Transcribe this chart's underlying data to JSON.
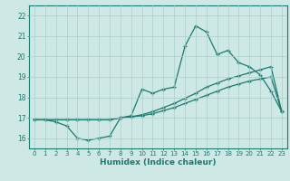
{
  "x": [
    0,
    1,
    2,
    3,
    4,
    5,
    6,
    7,
    8,
    9,
    10,
    11,
    12,
    13,
    14,
    15,
    16,
    17,
    18,
    19,
    20,
    21,
    22,
    23
  ],
  "series1": [
    16.9,
    16.9,
    16.8,
    16.6,
    16.0,
    15.9,
    16.0,
    16.1,
    17.0,
    17.1,
    18.4,
    18.2,
    18.4,
    18.5,
    20.5,
    21.5,
    21.2,
    20.1,
    20.3,
    19.7,
    19.5,
    19.1,
    18.3,
    17.3
  ],
  "series2": [
    16.9,
    16.9,
    16.9,
    16.9,
    16.9,
    16.9,
    16.9,
    16.9,
    17.0,
    17.05,
    17.1,
    17.2,
    17.35,
    17.5,
    17.7,
    17.9,
    18.1,
    18.3,
    18.5,
    18.65,
    18.8,
    18.9,
    19.0,
    17.3
  ],
  "series3": [
    16.9,
    16.9,
    16.9,
    16.9,
    16.9,
    16.9,
    16.9,
    16.9,
    17.0,
    17.05,
    17.15,
    17.3,
    17.5,
    17.7,
    17.95,
    18.2,
    18.5,
    18.7,
    18.9,
    19.05,
    19.2,
    19.35,
    19.5,
    17.3
  ],
  "xlabel": "Humidex (Indice chaleur)",
  "bg_color": "#cde8e5",
  "grid_color": "#aecfcc",
  "line_color": "#1a7a6e",
  "ylim": [
    15.5,
    22.5
  ],
  "xlim": [
    -0.5,
    23.5
  ],
  "yticks": [
    16,
    17,
    18,
    19,
    20,
    21,
    22
  ],
  "xticks": [
    0,
    1,
    2,
    3,
    4,
    5,
    6,
    7,
    8,
    9,
    10,
    11,
    12,
    13,
    14,
    15,
    16,
    17,
    18,
    19,
    20,
    21,
    22,
    23
  ]
}
